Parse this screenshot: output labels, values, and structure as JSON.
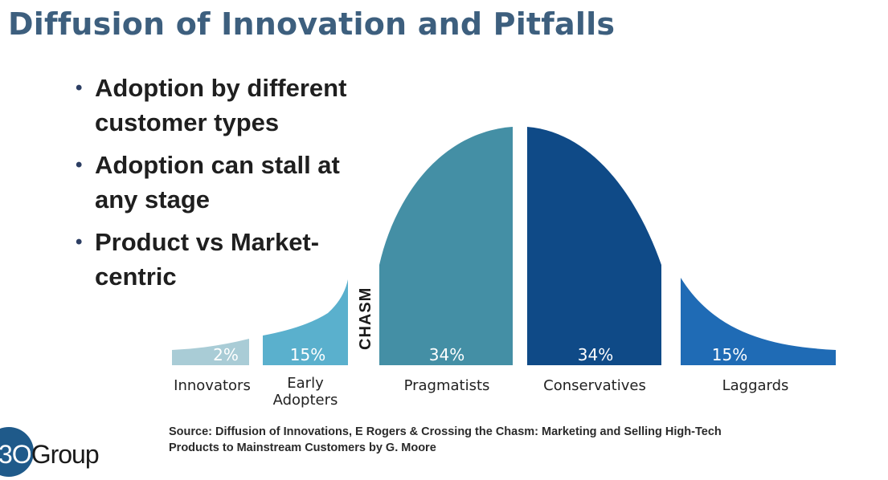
{
  "title": "Diffusion of Innovation and Pitfalls",
  "bullets": [
    "Adoption by different customer types",
    "Adoption can stall at any stage",
    "Product vs Market-centric"
  ],
  "chasm_label": "CHASM",
  "chart_data": {
    "type": "area",
    "segments": [
      {
        "category": "Innovators",
        "value": 2,
        "label": "2%",
        "color": "#a9ccd6"
      },
      {
        "category": "Early Adopters",
        "value": 15,
        "label": "15%",
        "color": "#5ab0cd"
      },
      {
        "category": "Pragmatists",
        "value": 34,
        "label": "34%",
        "color": "#448fa5"
      },
      {
        "category": "Conservatives",
        "value": 34,
        "label": "34%",
        "color": "#0f4a87"
      },
      {
        "category": "Laggards",
        "value": 15,
        "label": "15%",
        "color": "#1f6bb5"
      }
    ]
  },
  "category_labels": {
    "innovators": "Innovators",
    "early_line1": "Early",
    "early_line2": "Adopters",
    "pragmatists": "Pragmatists",
    "conservatives": "Conservatives",
    "laggards": "Laggards"
  },
  "source": {
    "line1": "Source:  Diffusion of Innovations, E Rogers  & Crossing the Chasm: Marketing and Selling High-Tech",
    "line2": "Products to Mainstream Customers by G. Moore"
  },
  "logo": {
    "prefix": "3O",
    "suffix": "Group"
  }
}
